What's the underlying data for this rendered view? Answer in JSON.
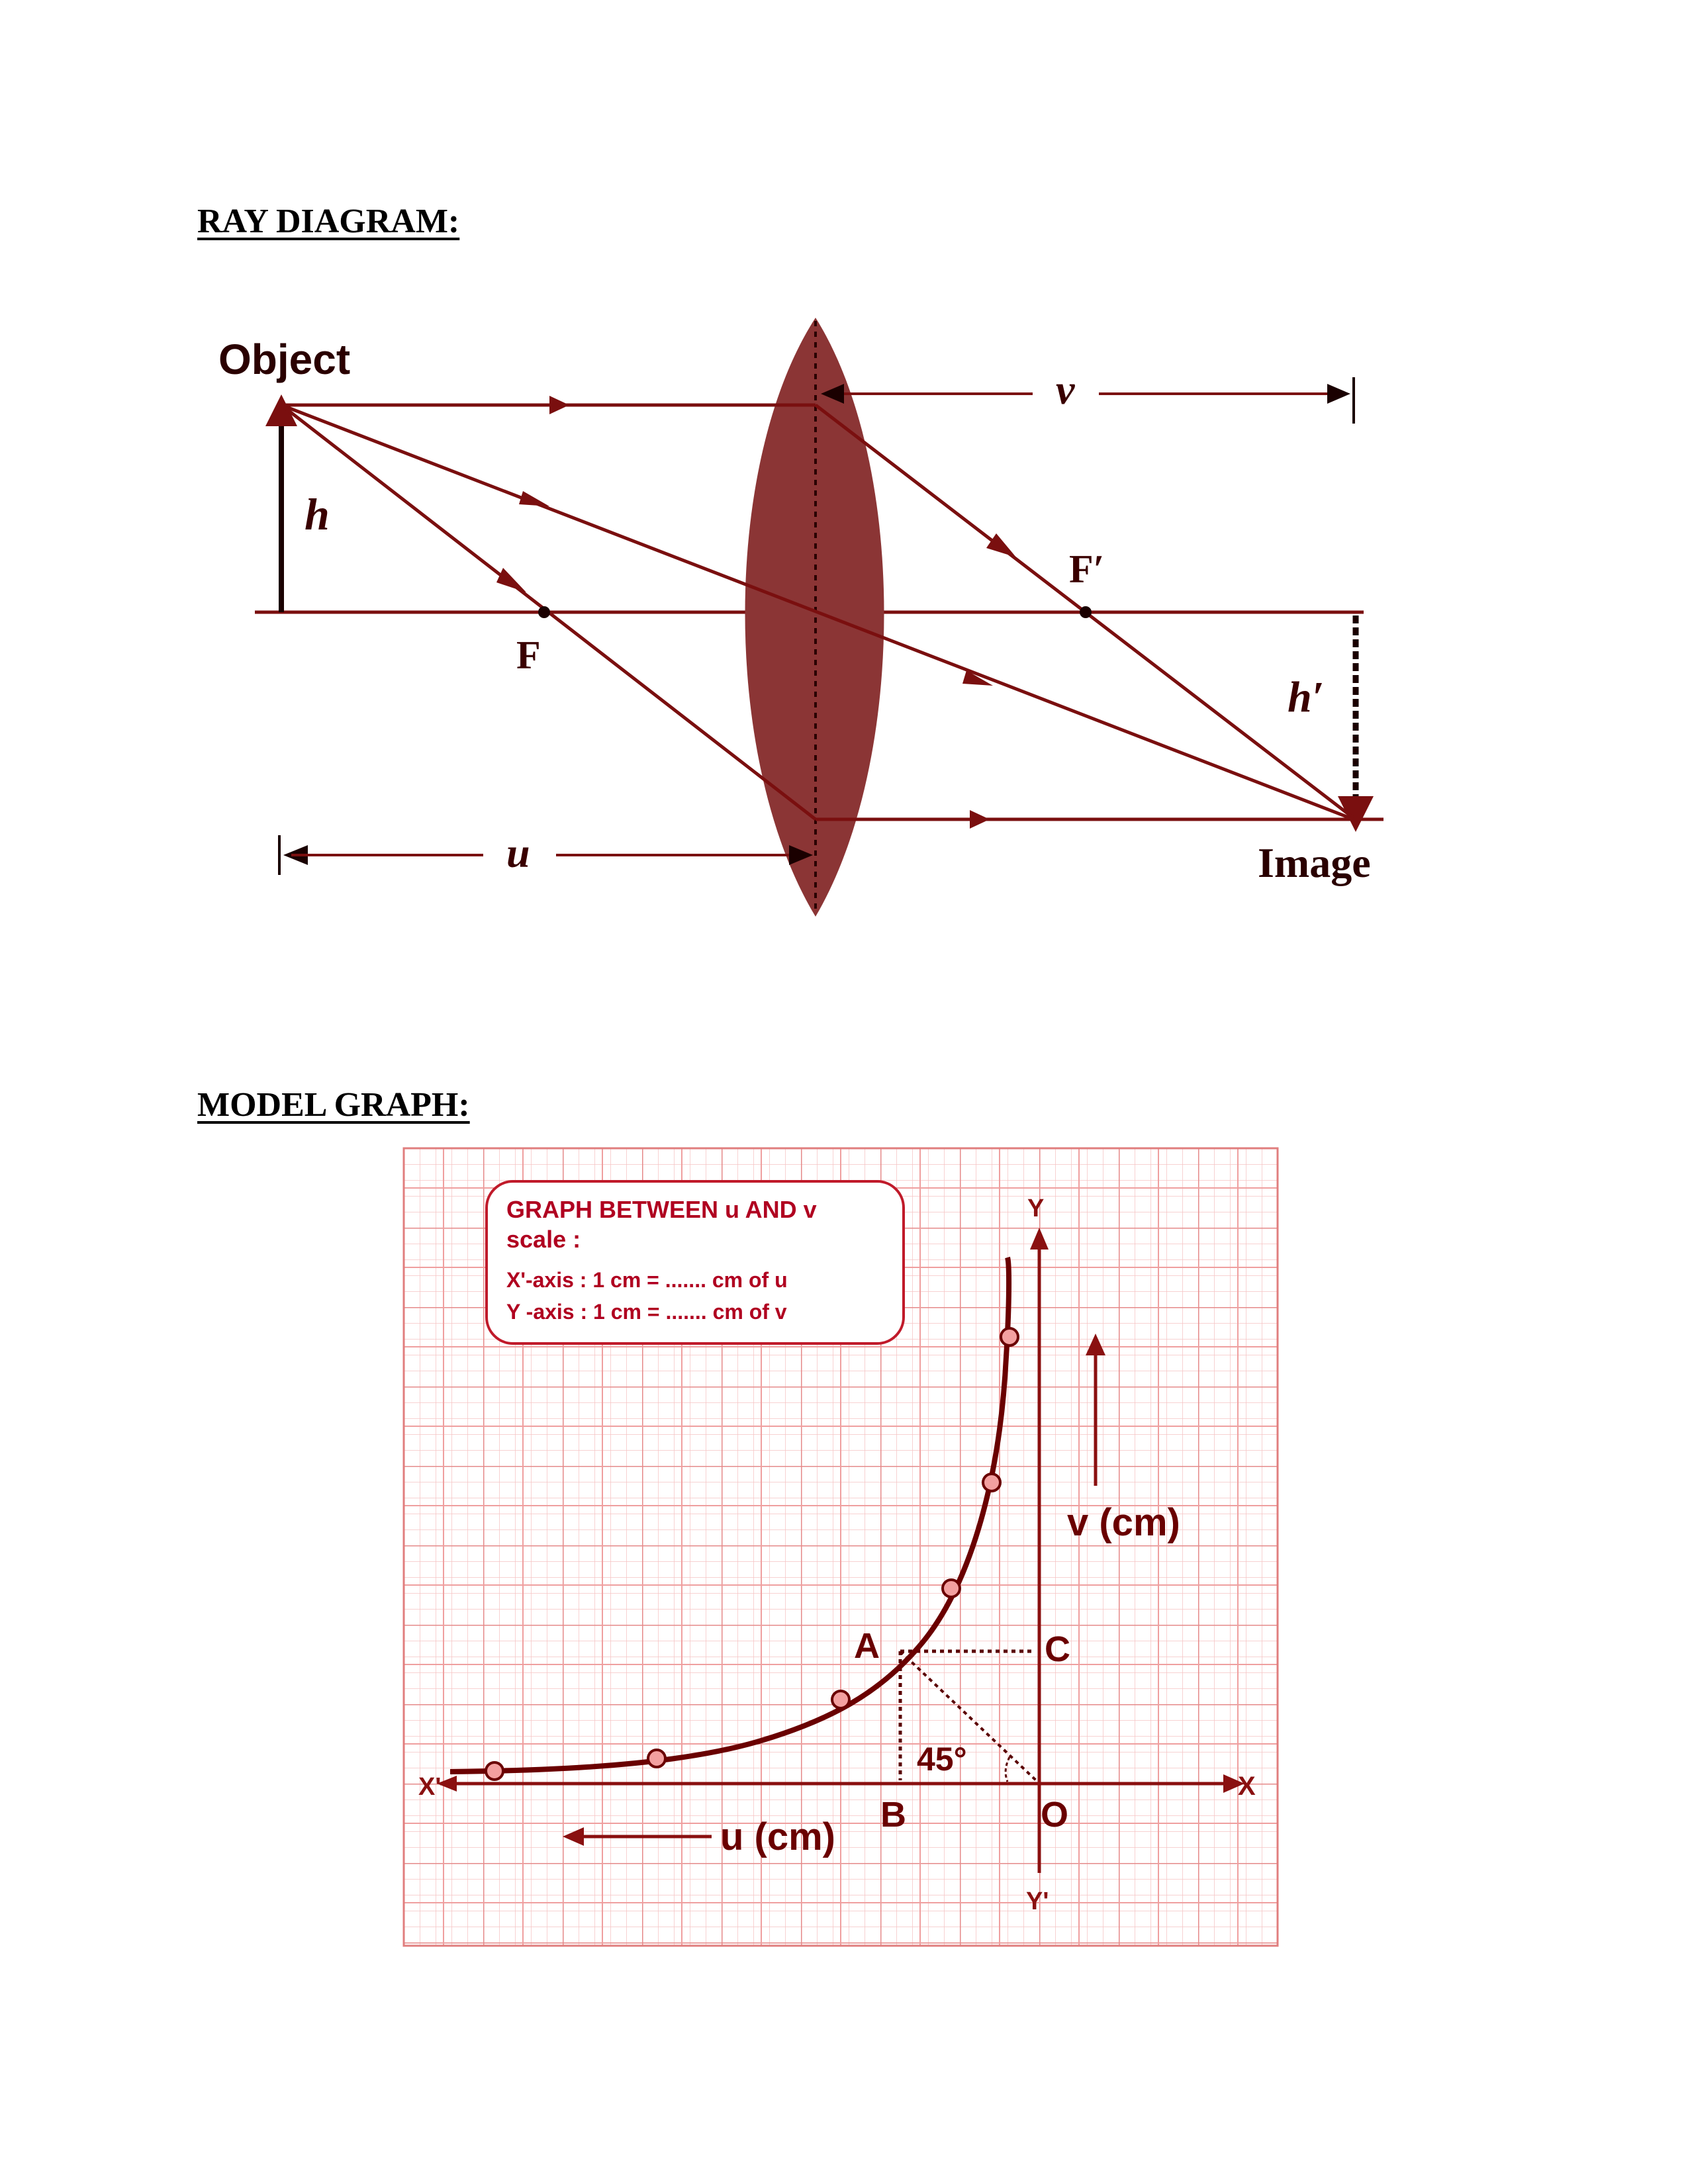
{
  "headings": {
    "ray_diagram": "RAY DIAGRAM:",
    "model_graph": "MODEL GRAPH:"
  },
  "ray_diagram": {
    "object": "Object",
    "image": "Image",
    "h": "h",
    "h_prime": "h′",
    "f": "F",
    "f_prime": "F′",
    "u": "u",
    "v": "v"
  },
  "graph": {
    "box_title": "GRAPH BETWEEN u AND v",
    "box_scale": "scale :",
    "box_x_scale": "X'-axis : 1 cm = ....... cm of u",
    "box_y_scale": "Y -axis : 1 cm = ....... cm of v",
    "axis_y": "Y",
    "axis_y_prime": "Y'",
    "axis_x": "X",
    "axis_x_prime": "X'",
    "origin": "O",
    "point_a": "A",
    "point_b": "B",
    "point_c": "C",
    "angle": "45°",
    "v_label": "v (cm)",
    "u_label": "u (cm)"
  },
  "colors": {
    "ray": "#7a0f0f",
    "lens": "#8b3535",
    "grid_minor": "#f2b8b8",
    "grid_major": "#e07e7e",
    "curve": "#6a0000",
    "point_fill": "#f3a0a0",
    "box_text": "#b00020"
  }
}
